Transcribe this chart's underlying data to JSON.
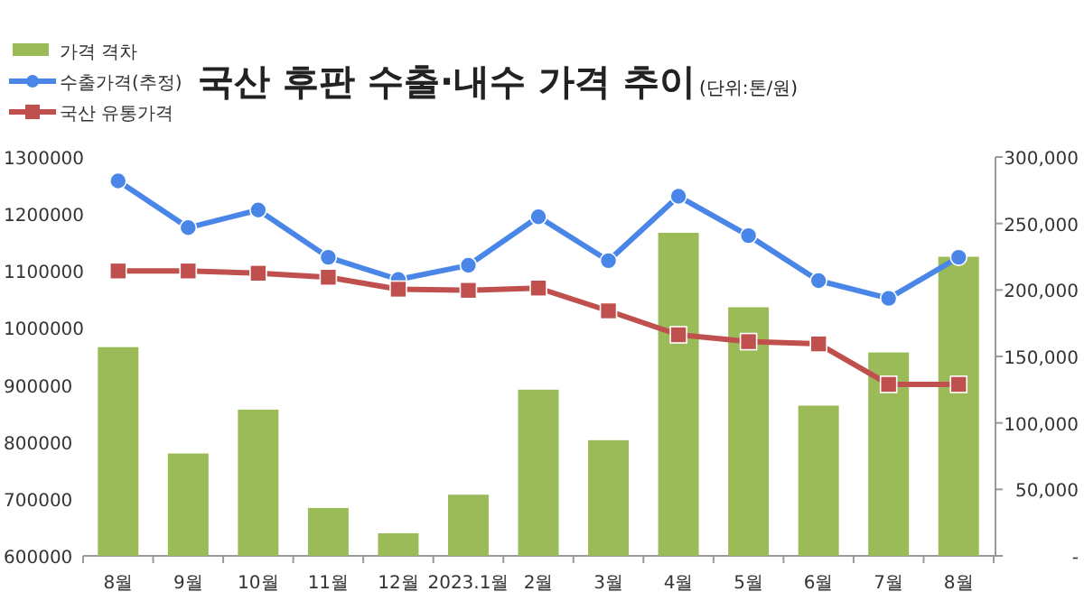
{
  "chart_data": {
    "type": "bar",
    "title": "국산 후판 수출·내수 가격 추이",
    "subtitle": "(단위:톤/원)",
    "categories": [
      "8월",
      "9월",
      "10월",
      "11월",
      "12월",
      "2023.1월",
      "2월",
      "3월",
      "4월",
      "5월",
      "6월",
      "7월",
      "8월"
    ],
    "series": [
      {
        "name": "가격 격차",
        "axis": "y2",
        "color": "#9bbb59",
        "values": [
          157000,
          77000,
          110000,
          36000,
          17000,
          46000,
          125000,
          87000,
          243000,
          187000,
          113000,
          153000,
          225000
        ]
      },
      {
        "name": "수출가격(추정)",
        "type": "line",
        "marker": "circle",
        "color": "#4a86e8",
        "values": [
          1258000,
          1176000,
          1207000,
          1124000,
          1085000,
          1110000,
          1195000,
          1118000,
          1231000,
          1162000,
          1083000,
          1052000,
          1124000
        ]
      },
      {
        "name": "국산 유통가격",
        "type": "line",
        "marker": "square",
        "color": "#c0504d",
        "values": [
          1100000,
          1100000,
          1096000,
          1089000,
          1068000,
          1066000,
          1070000,
          1030000,
          988000,
          976000,
          972000,
          901000,
          901000
        ]
      }
    ],
    "ylim": [
      600000,
      1300000
    ],
    "yticks": [
      600000,
      700000,
      800000,
      900000,
      1000000,
      1100000,
      1200000,
      1300000
    ],
    "y2lim": [
      0,
      300000
    ],
    "y2ticks": [
      {
        "value": 0,
        "label": "-"
      },
      {
        "value": 50000,
        "label": "50,000"
      },
      {
        "value": 100000,
        "label": "100,000"
      },
      {
        "value": 150000,
        "label": "150,000"
      },
      {
        "value": 200000,
        "label": "200,000"
      },
      {
        "value": 250000,
        "label": "250,000"
      },
      {
        "value": 300000,
        "label": "300,000"
      }
    ],
    "legend": "top left",
    "grid": false
  }
}
